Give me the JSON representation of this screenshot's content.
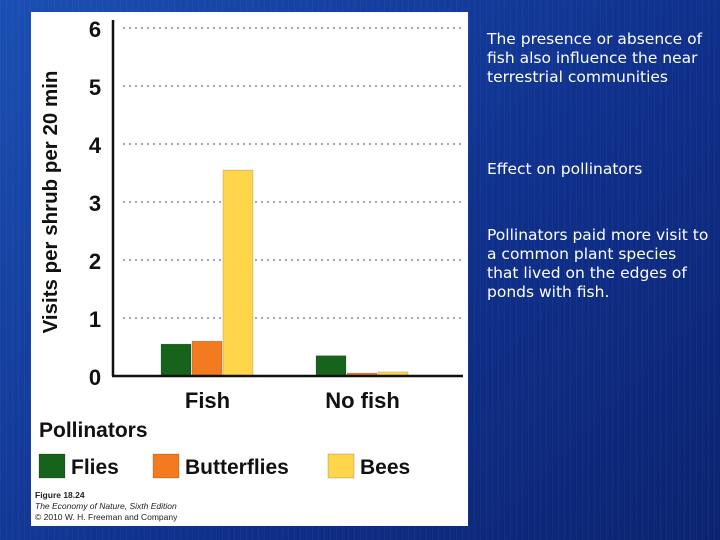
{
  "chart_data": {
    "type": "bar",
    "ylabel": "Visits per shrub per 20 min",
    "ylim": [
      0,
      6
    ],
    "yticks": [
      "0",
      "1",
      "2",
      "3",
      "4",
      "5",
      "6"
    ],
    "categories": [
      "Fish",
      "No fish"
    ],
    "legend_title": "Pollinators",
    "legend_position": "bottom",
    "grid": "dotted-horizontal",
    "series": [
      {
        "name": "Flies",
        "color": "#17631c",
        "values": [
          0.55,
          0.35
        ]
      },
      {
        "name": "Butterflies",
        "color": "#f47a1f",
        "values": [
          0.6,
          0.05
        ]
      },
      {
        "name": "Bees",
        "color": "#ffd54a",
        "values": [
          3.55,
          0.07
        ]
      }
    ]
  },
  "caption": {
    "line1": "Figure 18.24",
    "line2": "The Economy of Nature, Sixth Edition",
    "line3": "© 2010 W. H. Freeman and Company"
  },
  "slide_text": {
    "para1": "The presence or absence of fish also influence the near terrestrial communities",
    "para2": "Effect on pollinators",
    "para3": "Pollinators paid more visit to a common plant species that lived on the edges of ponds with fish."
  }
}
